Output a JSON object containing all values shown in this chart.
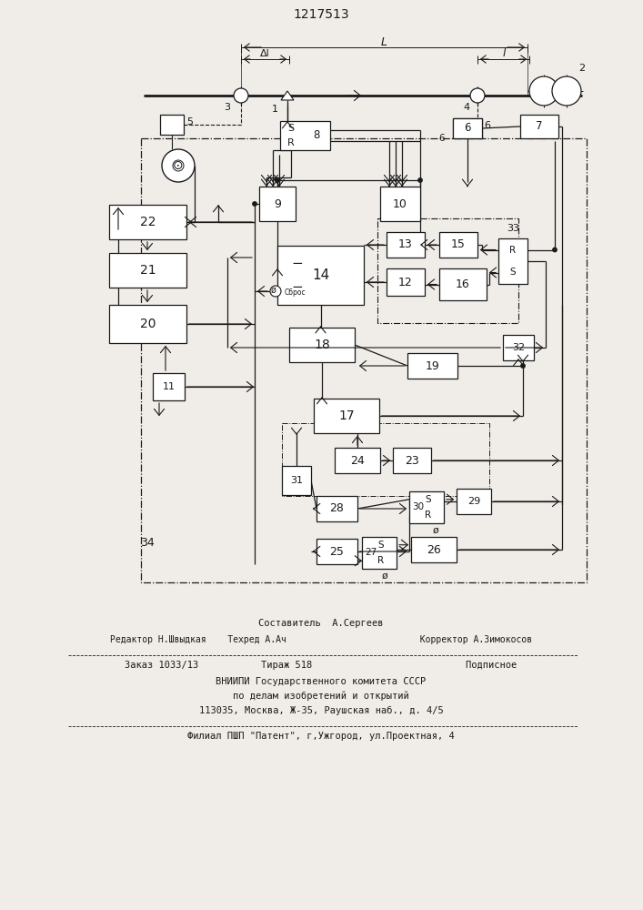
{
  "title": "1217513",
  "bg_color": "#f0ede8",
  "line_color": "#1a1a1a",
  "box_fill": "#ffffff",
  "footer_lines": [
    "Составитель  А.Сергеев",
    "Редактор Н.Швыдкая    Техред А.Ач                         Корректор А.Зимокосов",
    "Заказ 1033/13           Тираж 518                           Подписное",
    "ВНИИПИ Государственного комитета СССР",
    "по делам изобретений и открытий",
    "113035, Москва, Ж-35, Раушская наб., д. 4/5",
    "Филиал ПШП \"Патент\", г,Ужгород, ул.Проектная, 4"
  ]
}
